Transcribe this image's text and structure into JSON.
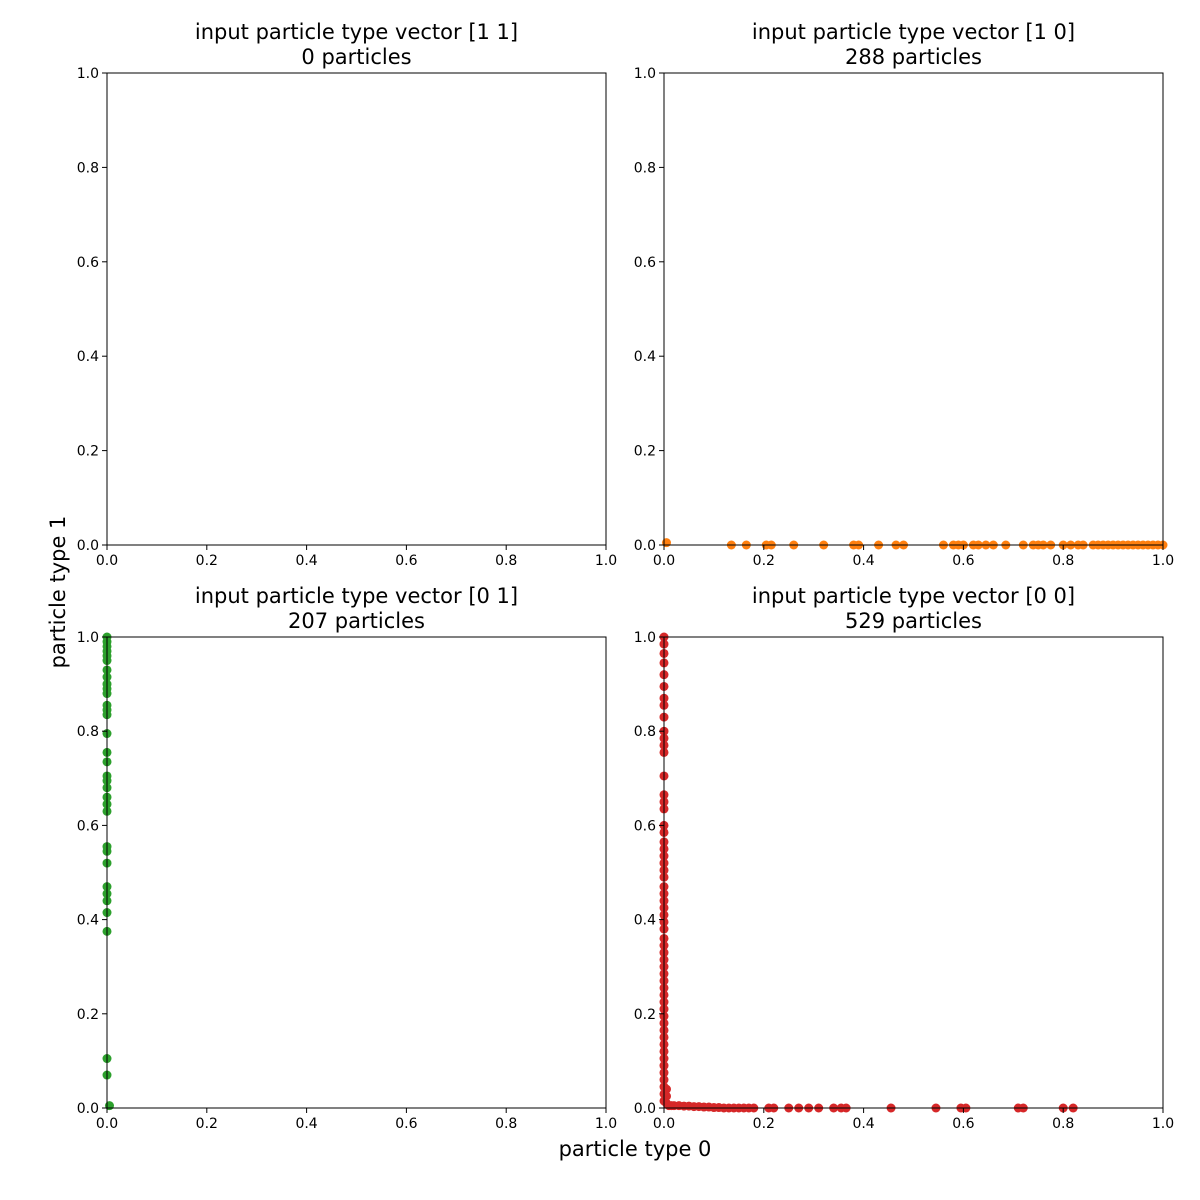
{
  "chart_data": {
    "xlabel": "particle type 0",
    "ylabel": "particle type 1",
    "panels": [
      {
        "type": "scatter",
        "title_line1": "input particle type vector [1 1]",
        "title_line2": "0 particles",
        "color": "#1f77b4",
        "xlim": [
          0,
          1
        ],
        "ylim": [
          0,
          1
        ],
        "xticks": [
          "0.0",
          "0.2",
          "0.4",
          "0.6",
          "0.8",
          "1.0"
        ],
        "yticks": [
          "0.0",
          "0.2",
          "0.4",
          "0.6",
          "0.8",
          "1.0"
        ],
        "points": []
      },
      {
        "type": "scatter",
        "title_line1": "input particle type vector [1 0]",
        "title_line2": "288 particles",
        "color": "#ff7f0e",
        "xlim": [
          0,
          1
        ],
        "ylim": [
          0,
          1
        ],
        "xticks": [
          "0.0",
          "0.2",
          "0.4",
          "0.6",
          "0.8",
          "1.0"
        ],
        "yticks": [
          "0.0",
          "0.2",
          "0.4",
          "0.6",
          "0.8",
          "1.0"
        ],
        "points": [
          [
            0.005,
            0.005
          ],
          [
            0.135,
            0.0
          ],
          [
            0.165,
            0.0
          ],
          [
            0.205,
            0.0
          ],
          [
            0.215,
            0.0
          ],
          [
            0.26,
            0.0
          ],
          [
            0.32,
            0.0
          ],
          [
            0.38,
            0.0
          ],
          [
            0.39,
            0.0
          ],
          [
            0.43,
            0.0
          ],
          [
            0.465,
            0.0
          ],
          [
            0.48,
            0.0
          ],
          [
            0.56,
            0.0
          ],
          [
            0.58,
            0.0
          ],
          [
            0.59,
            0.0
          ],
          [
            0.6,
            0.0
          ],
          [
            0.62,
            0.0
          ],
          [
            0.63,
            0.0
          ],
          [
            0.645,
            0.0
          ],
          [
            0.66,
            0.0
          ],
          [
            0.685,
            0.0
          ],
          [
            0.72,
            0.0
          ],
          [
            0.74,
            0.0
          ],
          [
            0.75,
            0.0
          ],
          [
            0.76,
            0.0
          ],
          [
            0.775,
            0.0
          ],
          [
            0.8,
            0.0
          ],
          [
            0.815,
            0.0
          ],
          [
            0.83,
            0.0
          ],
          [
            0.84,
            0.0
          ],
          [
            0.86,
            0.0
          ],
          [
            0.87,
            0.0
          ],
          [
            0.88,
            0.0
          ],
          [
            0.89,
            0.0
          ],
          [
            0.9,
            0.0
          ],
          [
            0.91,
            0.0
          ],
          [
            0.92,
            0.0
          ],
          [
            0.93,
            0.0
          ],
          [
            0.94,
            0.0
          ],
          [
            0.95,
            0.0
          ],
          [
            0.96,
            0.0
          ],
          [
            0.97,
            0.0
          ],
          [
            0.98,
            0.0
          ],
          [
            0.99,
            0.0
          ],
          [
            1.0,
            0.0
          ]
        ]
      },
      {
        "type": "scatter",
        "title_line1": "input particle type vector [0 1]",
        "title_line2": "207 particles",
        "color": "#2ca02c",
        "xlim": [
          0,
          1
        ],
        "ylim": [
          0,
          1
        ],
        "xticks": [
          "0.0",
          "0.2",
          "0.4",
          "0.6",
          "0.8",
          "1.0"
        ],
        "yticks": [
          "0.0",
          "0.2",
          "0.4",
          "0.6",
          "0.8",
          "1.0"
        ],
        "points": [
          [
            0.005,
            0.005
          ],
          [
            0.0,
            0.07
          ],
          [
            0.0,
            0.105
          ],
          [
            0.0,
            0.375
          ],
          [
            0.0,
            0.415
          ],
          [
            0.0,
            0.44
          ],
          [
            0.0,
            0.455
          ],
          [
            0.0,
            0.47
          ],
          [
            0.0,
            0.52
          ],
          [
            0.0,
            0.545
          ],
          [
            0.0,
            0.555
          ],
          [
            0.0,
            0.63
          ],
          [
            0.0,
            0.645
          ],
          [
            0.0,
            0.66
          ],
          [
            0.0,
            0.68
          ],
          [
            0.0,
            0.695
          ],
          [
            0.0,
            0.705
          ],
          [
            0.0,
            0.735
          ],
          [
            0.0,
            0.755
          ],
          [
            0.0,
            0.795
          ],
          [
            0.0,
            0.835
          ],
          [
            0.0,
            0.845
          ],
          [
            0.0,
            0.855
          ],
          [
            0.0,
            0.88
          ],
          [
            0.0,
            0.89
          ],
          [
            0.0,
            0.9
          ],
          [
            0.0,
            0.915
          ],
          [
            0.0,
            0.93
          ],
          [
            0.0,
            0.95
          ],
          [
            0.0,
            0.96
          ],
          [
            0.0,
            0.97
          ],
          [
            0.0,
            0.98
          ],
          [
            0.0,
            0.99
          ],
          [
            0.0,
            1.0
          ]
        ]
      },
      {
        "type": "scatter",
        "title_line1": "input particle type vector [0 0]",
        "title_line2": "529 particles",
        "color": "#d62728",
        "xlim": [
          0,
          1
        ],
        "ylim": [
          0,
          1
        ],
        "xticks": [
          "0.0",
          "0.2",
          "0.4",
          "0.6",
          "0.8",
          "1.0"
        ],
        "yticks": [
          "0.0",
          "0.2",
          "0.4",
          "0.6",
          "0.8",
          "1.0"
        ],
        "points": [
          [
            0.0,
            1.0
          ],
          [
            0.0,
            0.985
          ],
          [
            0.0,
            0.965
          ],
          [
            0.0,
            0.945
          ],
          [
            0.0,
            0.92
          ],
          [
            0.0,
            0.895
          ],
          [
            0.0,
            0.87
          ],
          [
            0.0,
            0.855
          ],
          [
            0.0,
            0.83
          ],
          [
            0.0,
            0.8
          ],
          [
            0.0,
            0.785
          ],
          [
            0.0,
            0.77
          ],
          [
            0.0,
            0.755
          ],
          [
            0.0,
            0.705
          ],
          [
            0.0,
            0.665
          ],
          [
            0.0,
            0.65
          ],
          [
            0.0,
            0.635
          ],
          [
            0.0,
            0.6
          ],
          [
            0.0,
            0.585
          ],
          [
            0.0,
            0.565
          ],
          [
            0.0,
            0.55
          ],
          [
            0.0,
            0.535
          ],
          [
            0.0,
            0.52
          ],
          [
            0.0,
            0.505
          ],
          [
            0.0,
            0.49
          ],
          [
            0.0,
            0.47
          ],
          [
            0.0,
            0.455
          ],
          [
            0.0,
            0.44
          ],
          [
            0.0,
            0.425
          ],
          [
            0.0,
            0.41
          ],
          [
            0.0,
            0.395
          ],
          [
            0.0,
            0.38
          ],
          [
            0.0,
            0.36
          ],
          [
            0.0,
            0.345
          ],
          [
            0.0,
            0.33
          ],
          [
            0.0,
            0.315
          ],
          [
            0.0,
            0.3
          ],
          [
            0.0,
            0.285
          ],
          [
            0.0,
            0.27
          ],
          [
            0.0,
            0.255
          ],
          [
            0.0,
            0.24
          ],
          [
            0.0,
            0.225
          ],
          [
            0.0,
            0.21
          ],
          [
            0.0,
            0.195
          ],
          [
            0.0,
            0.18
          ],
          [
            0.0,
            0.165
          ],
          [
            0.0,
            0.15
          ],
          [
            0.0,
            0.135
          ],
          [
            0.0,
            0.12
          ],
          [
            0.0,
            0.105
          ],
          [
            0.0,
            0.09
          ],
          [
            0.0,
            0.075
          ],
          [
            0.0,
            0.06
          ],
          [
            0.0,
            0.045
          ],
          [
            0.0,
            0.03
          ],
          [
            0.0,
            0.015
          ],
          [
            0.005,
            0.04
          ],
          [
            0.005,
            0.025
          ],
          [
            0.005,
            0.01
          ],
          [
            0.01,
            0.005
          ],
          [
            0.015,
            0.005
          ],
          [
            0.02,
            0.005
          ],
          [
            0.03,
            0.005
          ],
          [
            0.04,
            0.004
          ],
          [
            0.05,
            0.004
          ],
          [
            0.06,
            0.003
          ],
          [
            0.07,
            0.003
          ],
          [
            0.08,
            0.002
          ],
          [
            0.09,
            0.002
          ],
          [
            0.1,
            0.001
          ],
          [
            0.11,
            0.001
          ],
          [
            0.12,
            0.0
          ],
          [
            0.13,
            0.0
          ],
          [
            0.14,
            0.0
          ],
          [
            0.15,
            0.0
          ],
          [
            0.16,
            0.0
          ],
          [
            0.17,
            0.0
          ],
          [
            0.18,
            0.0
          ],
          [
            0.21,
            0.0
          ],
          [
            0.22,
            0.0
          ],
          [
            0.25,
            0.0
          ],
          [
            0.27,
            0.0
          ],
          [
            0.29,
            0.0
          ],
          [
            0.31,
            0.0
          ],
          [
            0.34,
            0.0
          ],
          [
            0.355,
            0.0
          ],
          [
            0.365,
            0.0
          ],
          [
            0.455,
            0.0
          ],
          [
            0.545,
            0.0
          ],
          [
            0.595,
            0.0
          ],
          [
            0.605,
            0.0
          ],
          [
            0.71,
            0.0
          ],
          [
            0.72,
            0.0
          ],
          [
            0.8,
            0.0
          ],
          [
            0.82,
            0.0
          ]
        ]
      }
    ]
  }
}
